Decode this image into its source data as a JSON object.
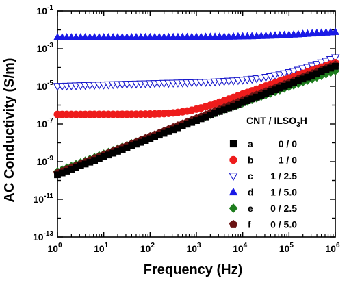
{
  "chart_data": {
    "type": "scatter",
    "xlabel": "Frequency (Hz)",
    "ylabel": "AC Conductivity (S/m)",
    "x_scale": "log",
    "y_scale": "log",
    "xlim": [
      1,
      1000000
    ],
    "ylim": [
      1e-13,
      0.1
    ],
    "x_ticks": [
      1,
      10,
      100,
      1000,
      10000,
      100000,
      1000000
    ],
    "x_tick_labels": [
      {
        "base": "10",
        "exp": "0"
      },
      {
        "base": "10",
        "exp": "1"
      },
      {
        "base": "10",
        "exp": "2"
      },
      {
        "base": "10",
        "exp": "3"
      },
      {
        "base": "10",
        "exp": "4"
      },
      {
        "base": "10",
        "exp": "5"
      },
      {
        "base": "10",
        "exp": "6"
      }
    ],
    "y_ticks": [
      1e-13,
      1e-11,
      1e-09,
      1e-07,
      1e-05,
      0.001,
      0.1
    ],
    "y_tick_labels": [
      {
        "base": "10",
        "exp": "-13"
      },
      {
        "base": "10",
        "exp": "-11"
      },
      {
        "base": "10",
        "exp": "-9"
      },
      {
        "base": "10",
        "exp": "-7"
      },
      {
        "base": "10",
        "exp": "-5"
      },
      {
        "base": "10",
        "exp": "-3"
      },
      {
        "base": "10",
        "exp": "-1"
      }
    ],
    "grid": false,
    "legend_position": "right",
    "legend_title": {
      "main": "CNT / ILSO",
      "sub": "3",
      "tail": "H"
    },
    "x": [
      1,
      1.259,
      1.585,
      1.995,
      2.512,
      3.162,
      3.981,
      5.012,
      6.31,
      7.943,
      10,
      12.59,
      15.85,
      19.95,
      25.12,
      31.62,
      39.81,
      50.12,
      63.1,
      79.43,
      100,
      125.9,
      158.5,
      199.5,
      251.2,
      316.2,
      398.1,
      501.2,
      631,
      794.3,
      1000,
      1259,
      1585,
      1995,
      2512,
      3162,
      3981,
      5012,
      6310,
      7943,
      10000,
      12590,
      15850,
      19950,
      25120,
      31620,
      39810,
      50120,
      63100,
      79430,
      100000,
      125900,
      158500,
      199500,
      251200,
      316200,
      398100,
      501200,
      631000,
      794300,
      1000000
    ],
    "series": [
      {
        "name": "a",
        "ratio": "0 / 0",
        "marker": "square",
        "color": "#000000",
        "filled": true,
        "values": [
          2e-10,
          2.5e-10,
          3.1e-10,
          3.9e-10,
          4.8e-10,
          6e-10,
          7.5e-10,
          9.4e-10,
          1.17e-09,
          1.46e-09,
          1.82e-09,
          2.27e-09,
          2.83e-09,
          3.53e-09,
          4.4e-09,
          5.5e-09,
          6.85e-09,
          8.55e-09,
          1.07e-08,
          1.33e-08,
          1.66e-08,
          2.07e-08,
          2.58e-08,
          3.22e-08,
          4.02e-08,
          5.01e-08,
          6.25e-08,
          7.8e-08,
          9.73e-08,
          1.21e-07,
          1.51e-07,
          1.89e-07,
          2.36e-07,
          2.94e-07,
          3.67e-07,
          4.57e-07,
          5.7e-07,
          7.12e-07,
          8.88e-07,
          1.11e-06,
          1.38e-06,
          1.72e-06,
          2.15e-06,
          2.68e-06,
          3.35e-06,
          4.17e-06,
          5.21e-06,
          6.5e-06,
          8.1e-06,
          1.01e-05,
          1.26e-05,
          1.57e-05,
          1.96e-05,
          2.45e-05,
          3.05e-05,
          3.8e-05,
          4.75e-05,
          5.92e-05,
          7.39e-05,
          9.22e-05,
          0.000115
        ]
      },
      {
        "name": "b",
        "ratio": "1 / 0",
        "marker": "circle",
        "color": "#ee1c1c",
        "filled": true,
        "values": [
          3.2e-07,
          3.2e-07,
          3.2e-07,
          3.2e-07,
          3.21e-07,
          3.21e-07,
          3.21e-07,
          3.22e-07,
          3.22e-07,
          3.22e-07,
          3.23e-07,
          3.23e-07,
          3.24e-07,
          3.24e-07,
          3.25e-07,
          3.26e-07,
          3.27e-07,
          3.28e-07,
          3.3e-07,
          3.32e-07,
          3.35e-07,
          3.4e-07,
          3.47e-07,
          3.56e-07,
          3.69e-07,
          3.87e-07,
          4.1e-07,
          4.42e-07,
          4.84e-07,
          5.4e-07,
          6.1e-07,
          7.05e-07,
          8.25e-07,
          9.8e-07,
          1.18e-06,
          1.43e-06,
          1.73e-06,
          2.11e-06,
          2.58e-06,
          3.16e-06,
          3.86e-06,
          4.72e-06,
          5.77e-06,
          7.04e-06,
          8.58e-06,
          1.04e-05,
          1.27e-05,
          1.54e-05,
          1.87e-05,
          2.27e-05,
          2.75e-05,
          3.33e-05,
          4.03e-05,
          4.87e-05,
          5.89e-05,
          7.11e-05,
          8.58e-05,
          0.000103,
          0.000125,
          0.00015,
          0.00018
        ]
      },
      {
        "name": "c",
        "ratio": "1 / 2.5",
        "marker": "triangle-down",
        "color": "#1a1acc",
        "filled": false,
        "values": [
          1e-05,
          1.02e-05,
          1.04e-05,
          1.06e-05,
          1.08e-05,
          1.1e-05,
          1.12e-05,
          1.14e-05,
          1.16e-05,
          1.18e-05,
          1.2e-05,
          1.22e-05,
          1.24e-05,
          1.26e-05,
          1.28e-05,
          1.3e-05,
          1.32e-05,
          1.34e-05,
          1.36e-05,
          1.38e-05,
          1.4e-05,
          1.42e-05,
          1.44e-05,
          1.46e-05,
          1.48e-05,
          1.5e-05,
          1.52e-05,
          1.54e-05,
          1.56e-05,
          1.58e-05,
          1.6e-05,
          1.63e-05,
          1.66e-05,
          1.7e-05,
          1.74e-05,
          1.79e-05,
          1.84e-05,
          1.9e-05,
          1.97e-05,
          2.05e-05,
          2.15e-05,
          2.27e-05,
          2.41e-05,
          2.58e-05,
          2.79e-05,
          3.04e-05,
          3.35e-05,
          3.72e-05,
          4.18e-05,
          4.75e-05,
          5.45e-05,
          6.3e-05,
          7.35e-05,
          8.65e-05,
          0.000103,
          0.000123,
          0.000148,
          0.00018,
          0.00022,
          0.00027,
          0.00033
        ]
      },
      {
        "name": "d",
        "ratio": "1 / 5.0",
        "marker": "triangle-up",
        "color": "#1a1ae6",
        "filled": true,
        "values": [
          0.004,
          0.004,
          0.004,
          0.004,
          0.004,
          0.00401,
          0.00401,
          0.00401,
          0.00402,
          0.00402,
          0.00402,
          0.00403,
          0.00403,
          0.00404,
          0.00404,
          0.00405,
          0.00405,
          0.00406,
          0.00407,
          0.00408,
          0.00408,
          0.00409,
          0.0041,
          0.00411,
          0.00412,
          0.00413,
          0.00414,
          0.00416,
          0.00417,
          0.00419,
          0.0042,
          0.00422,
          0.00424,
          0.00426,
          0.00428,
          0.00431,
          0.00434,
          0.00437,
          0.00441,
          0.00445,
          0.0045,
          0.00455,
          0.00461,
          0.00468,
          0.00476,
          0.00485,
          0.00495,
          0.00506,
          0.00519,
          0.00533,
          0.00548,
          0.00565,
          0.00583,
          0.00603,
          0.00624,
          0.00647,
          0.00671,
          0.00696,
          0.00722,
          0.0075,
          0.0078
        ]
      },
      {
        "name": "e",
        "ratio": "0 / 2.5",
        "marker": "diamond",
        "color": "#1e7d1e",
        "filled": true,
        "values": [
          3e-10,
          3.72e-10,
          4.62e-10,
          5.72e-10,
          7.09e-10,
          8.78e-10,
          1.09e-09,
          1.35e-09,
          1.67e-09,
          2.07e-09,
          2.56e-09,
          3.16e-09,
          3.91e-09,
          4.84e-09,
          5.98e-09,
          7.39e-09,
          9.13e-09,
          1.13e-08,
          1.39e-08,
          1.72e-08,
          2.12e-08,
          2.62e-08,
          3.23e-08,
          3.98e-08,
          4.91e-08,
          6.05e-08,
          7.45e-08,
          9.17e-08,
          1.13e-07,
          1.39e-07,
          1.71e-07,
          2.1e-07,
          2.58e-07,
          3.17e-07,
          3.89e-07,
          4.77e-07,
          5.85e-07,
          7.17e-07,
          8.78e-07,
          1.07e-06,
          1.31e-06,
          1.6e-06,
          1.96e-06,
          2.39e-06,
          2.92e-06,
          3.56e-06,
          4.34e-06,
          5.29e-06,
          6.44e-06,
          7.84e-06,
          9.54e-06,
          1.16e-05,
          1.41e-05,
          1.71e-05,
          2.08e-05,
          2.52e-05,
          3.06e-05,
          3.71e-05,
          4.5e-05,
          5.46e-05,
          6.6e-05
        ]
      },
      {
        "name": "f",
        "ratio": "0 / 5.0",
        "marker": "pentagon",
        "color": "#6b1414",
        "filled": true,
        "values": [
          2.5e-10,
          3.13e-10,
          3.91e-10,
          4.89e-10,
          6.11e-10,
          7.64e-10,
          9.55e-10,
          1.19e-09,
          1.49e-09,
          1.86e-09,
          2.33e-09,
          2.91e-09,
          3.63e-09,
          4.54e-09,
          5.67e-09,
          7.08e-09,
          8.85e-09,
          1.1e-08,
          1.38e-08,
          1.72e-08,
          2.15e-08,
          2.68e-08,
          3.35e-08,
          4.18e-08,
          5.22e-08,
          6.52e-08,
          8.13e-08,
          1.01e-07,
          1.27e-07,
          1.58e-07,
          1.97e-07,
          2.46e-07,
          3.07e-07,
          3.83e-07,
          4.78e-07,
          5.96e-07,
          7.44e-07,
          9.27e-07,
          1.16e-06,
          1.44e-06,
          1.8e-06,
          2.24e-06,
          2.79e-06,
          3.48e-06,
          4.33e-06,
          5.39e-06,
          6.71e-06,
          8.35e-06,
          1.04e-05,
          1.29e-05,
          1.61e-05,
          2e-05,
          2.48e-05,
          3.08e-05,
          3.82e-05,
          4.74e-05,
          5.88e-05,
          7.29e-05,
          9.03e-05,
          0.000112,
          0.000138
        ]
      }
    ]
  }
}
